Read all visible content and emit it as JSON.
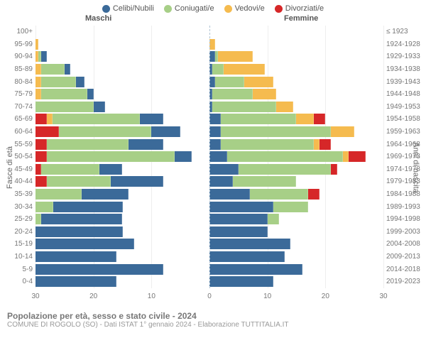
{
  "legend": [
    {
      "label": "Celibi/Nubili",
      "color": "#3b6a99"
    },
    {
      "label": "Coniugati/e",
      "color": "#a7cf87"
    },
    {
      "label": "Vedovi/e",
      "color": "#f5bb4f"
    },
    {
      "label": "Divorziati/e",
      "color": "#d62728"
    }
  ],
  "headers": {
    "male": "Maschi",
    "female": "Femmine"
  },
  "axis_titles": {
    "left": "Fasce di età",
    "right": "Anni di nascita"
  },
  "xaxis": {
    "max": 30,
    "ticks": [
      30,
      20,
      10,
      0,
      10,
      20,
      30
    ],
    "tick_labels": [
      "30",
      "20",
      "10",
      "0",
      "10",
      "20",
      "30"
    ]
  },
  "footer": {
    "title": "Popolazione per età, sesso e stato civile - 2024",
    "subtitle": "COMUNE DI ROGOLO (SO) - Dati ISTAT 1° gennaio 2024 - Elaborazione TUTTITALIA.IT"
  },
  "colors": {
    "celibi": "#3b6a99",
    "coniugati": "#a7cf87",
    "vedovi": "#f5bb4f",
    "divorziati": "#d62728"
  },
  "rows": [
    {
      "age": "100+",
      "birth": "≤ 1923",
      "m": {
        "cel": 0,
        "con": 0,
        "ved": 0,
        "div": 0
      },
      "f": {
        "cel": 0,
        "con": 0,
        "ved": 0,
        "div": 0
      }
    },
    {
      "age": "95-99",
      "birth": "1924-1928",
      "m": {
        "cel": 0,
        "con": 0,
        "ved": 0.5,
        "div": 0
      },
      "f": {
        "cel": 0,
        "con": 0,
        "ved": 1,
        "div": 0
      }
    },
    {
      "age": "90-94",
      "birth": "1929-1933",
      "m": {
        "cel": 1,
        "con": 0.5,
        "ved": 0.5,
        "div": 0
      },
      "f": {
        "cel": 1,
        "con": 0.5,
        "ved": 6,
        "div": 0
      }
    },
    {
      "age": "85-89",
      "birth": "1934-1938",
      "m": {
        "cel": 1,
        "con": 4,
        "ved": 1,
        "div": 0
      },
      "f": {
        "cel": 0.5,
        "con": 2,
        "ved": 7,
        "div": 0
      }
    },
    {
      "age": "80-84",
      "birth": "1939-1943",
      "m": {
        "cel": 1.5,
        "con": 6,
        "ved": 1,
        "div": 0
      },
      "f": {
        "cel": 1,
        "con": 5,
        "ved": 5,
        "div": 0
      }
    },
    {
      "age": "75-79",
      "birth": "1944-1948",
      "m": {
        "cel": 1,
        "con": 8,
        "ved": 1,
        "div": 0
      },
      "f": {
        "cel": 0.5,
        "con": 7,
        "ved": 4,
        "div": 0
      }
    },
    {
      "age": "70-74",
      "birth": "1949-1953",
      "m": {
        "cel": 2,
        "con": 10,
        "ved": 0,
        "div": 0
      },
      "f": {
        "cel": 0.5,
        "con": 11,
        "ved": 3,
        "div": 0
      }
    },
    {
      "age": "65-69",
      "birth": "1954-1958",
      "m": {
        "cel": 4,
        "con": 15,
        "ved": 1,
        "div": 2
      },
      "f": {
        "cel": 2,
        "con": 13,
        "ved": 3,
        "div": 2
      }
    },
    {
      "age": "60-64",
      "birth": "1959-1963",
      "m": {
        "cel": 5,
        "con": 16,
        "ved": 0,
        "div": 4
      },
      "f": {
        "cel": 2,
        "con": 19,
        "ved": 4,
        "div": 0
      }
    },
    {
      "age": "55-59",
      "birth": "1964-1968",
      "m": {
        "cel": 6,
        "con": 14,
        "ved": 0,
        "div": 2
      },
      "f": {
        "cel": 2,
        "con": 16,
        "ved": 1,
        "div": 2
      }
    },
    {
      "age": "50-54",
      "birth": "1969-1973",
      "m": {
        "cel": 3,
        "con": 22,
        "ved": 0,
        "div": 2
      },
      "f": {
        "cel": 3,
        "con": 20,
        "ved": 1,
        "div": 3
      }
    },
    {
      "age": "45-49",
      "birth": "1974-1978",
      "m": {
        "cel": 4,
        "con": 10,
        "ved": 0,
        "div": 1
      },
      "f": {
        "cel": 5,
        "con": 16,
        "ved": 0,
        "div": 1
      }
    },
    {
      "age": "40-44",
      "birth": "1979-1983",
      "m": {
        "cel": 9,
        "con": 11,
        "ved": 0,
        "div": 2
      },
      "f": {
        "cel": 4,
        "con": 11,
        "ved": 0,
        "div": 0
      }
    },
    {
      "age": "35-39",
      "birth": "1984-1988",
      "m": {
        "cel": 8,
        "con": 8,
        "ved": 0,
        "div": 0
      },
      "f": {
        "cel": 7,
        "con": 10,
        "ved": 0,
        "div": 2
      }
    },
    {
      "age": "30-34",
      "birth": "1989-1993",
      "m": {
        "cel": 12,
        "con": 3,
        "ved": 0,
        "div": 0
      },
      "f": {
        "cel": 11,
        "con": 6,
        "ved": 0,
        "div": 0
      }
    },
    {
      "age": "25-29",
      "birth": "1994-1998",
      "m": {
        "cel": 14,
        "con": 1,
        "ved": 0,
        "div": 0
      },
      "f": {
        "cel": 10,
        "con": 2,
        "ved": 0,
        "div": 0
      }
    },
    {
      "age": "20-24",
      "birth": "1999-2003",
      "m": {
        "cel": 15,
        "con": 0,
        "ved": 0,
        "div": 0
      },
      "f": {
        "cel": 10,
        "con": 0,
        "ved": 0,
        "div": 0
      }
    },
    {
      "age": "15-19",
      "birth": "2004-2008",
      "m": {
        "cel": 17,
        "con": 0,
        "ved": 0,
        "div": 0
      },
      "f": {
        "cel": 14,
        "con": 0,
        "ved": 0,
        "div": 0
      }
    },
    {
      "age": "10-14",
      "birth": "2009-2013",
      "m": {
        "cel": 14,
        "con": 0,
        "ved": 0,
        "div": 0
      },
      "f": {
        "cel": 13,
        "con": 0,
        "ved": 0,
        "div": 0
      }
    },
    {
      "age": "5-9",
      "birth": "2014-2018",
      "m": {
        "cel": 22,
        "con": 0,
        "ved": 0,
        "div": 0
      },
      "f": {
        "cel": 16,
        "con": 0,
        "ved": 0,
        "div": 0
      }
    },
    {
      "age": "0-4",
      "birth": "2019-2023",
      "m": {
        "cel": 14,
        "con": 0,
        "ved": 0,
        "div": 0
      },
      "f": {
        "cel": 11,
        "con": 0,
        "ved": 0,
        "div": 0
      }
    }
  ]
}
